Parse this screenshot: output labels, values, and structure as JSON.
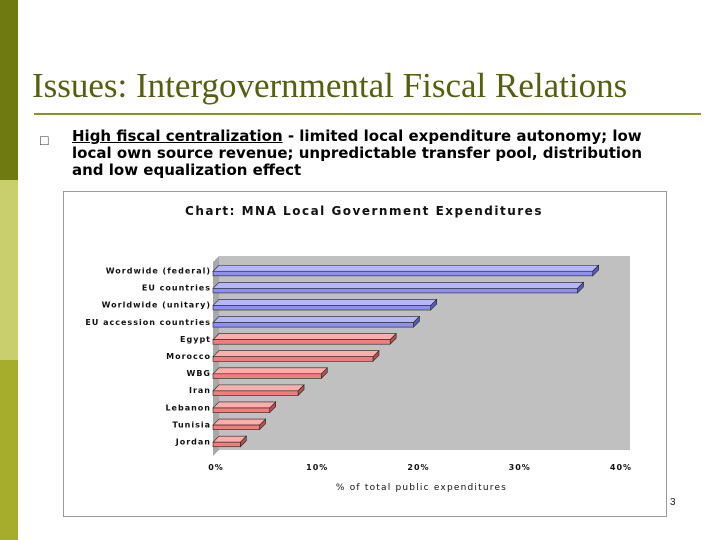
{
  "slide": {
    "title": "Issues: Intergovernmental Fiscal Relations",
    "bullet_head": "High fiscal centralization",
    "bullet_rest": " - limited local expenditure autonomy; low local own source revenue; unpredictable transfer pool, distribution and low equalization effect",
    "page_number": "3",
    "bullet_icon": "square-bullet-icon"
  },
  "colors": {
    "sidebar_dark": "#6f7a10",
    "sidebar_light": "#c9cf6c",
    "title": "#565e10",
    "series_blue": "#8f8ff2",
    "series_red": "#f27d7d",
    "plot_bg": "#c0c0c0"
  },
  "chart_data": {
    "type": "bar",
    "orientation": "horizontal",
    "title": "Chart: MNA Local Government Expenditures",
    "xlabel": "% of total public expenditures",
    "ylabel": "",
    "xlim": [
      0,
      40
    ],
    "xticks": [
      "0%",
      "10%",
      "20%",
      "30%",
      "40%"
    ],
    "grid": false,
    "legend": "none",
    "categories": [
      "Wordwide (federal)",
      "EU countries",
      "Worldwide (unitary)",
      "EU accession countries",
      "Egypt",
      "Morocco",
      "WBG",
      "Iran",
      "Lebanon",
      "Tunisia",
      "Jordan"
    ],
    "values": [
      37.5,
      36,
      21.5,
      19.8,
      17.5,
      15.8,
      10.7,
      8.4,
      5.6,
      4.6,
      2.7
    ],
    "colors": [
      "#8f8ff2",
      "#8f8ff2",
      "#8f8ff2",
      "#8f8ff2",
      "#f27d7d",
      "#f27d7d",
      "#f27d7d",
      "#f27d7d",
      "#f27d7d",
      "#f27d7d",
      "#f27d7d"
    ]
  }
}
